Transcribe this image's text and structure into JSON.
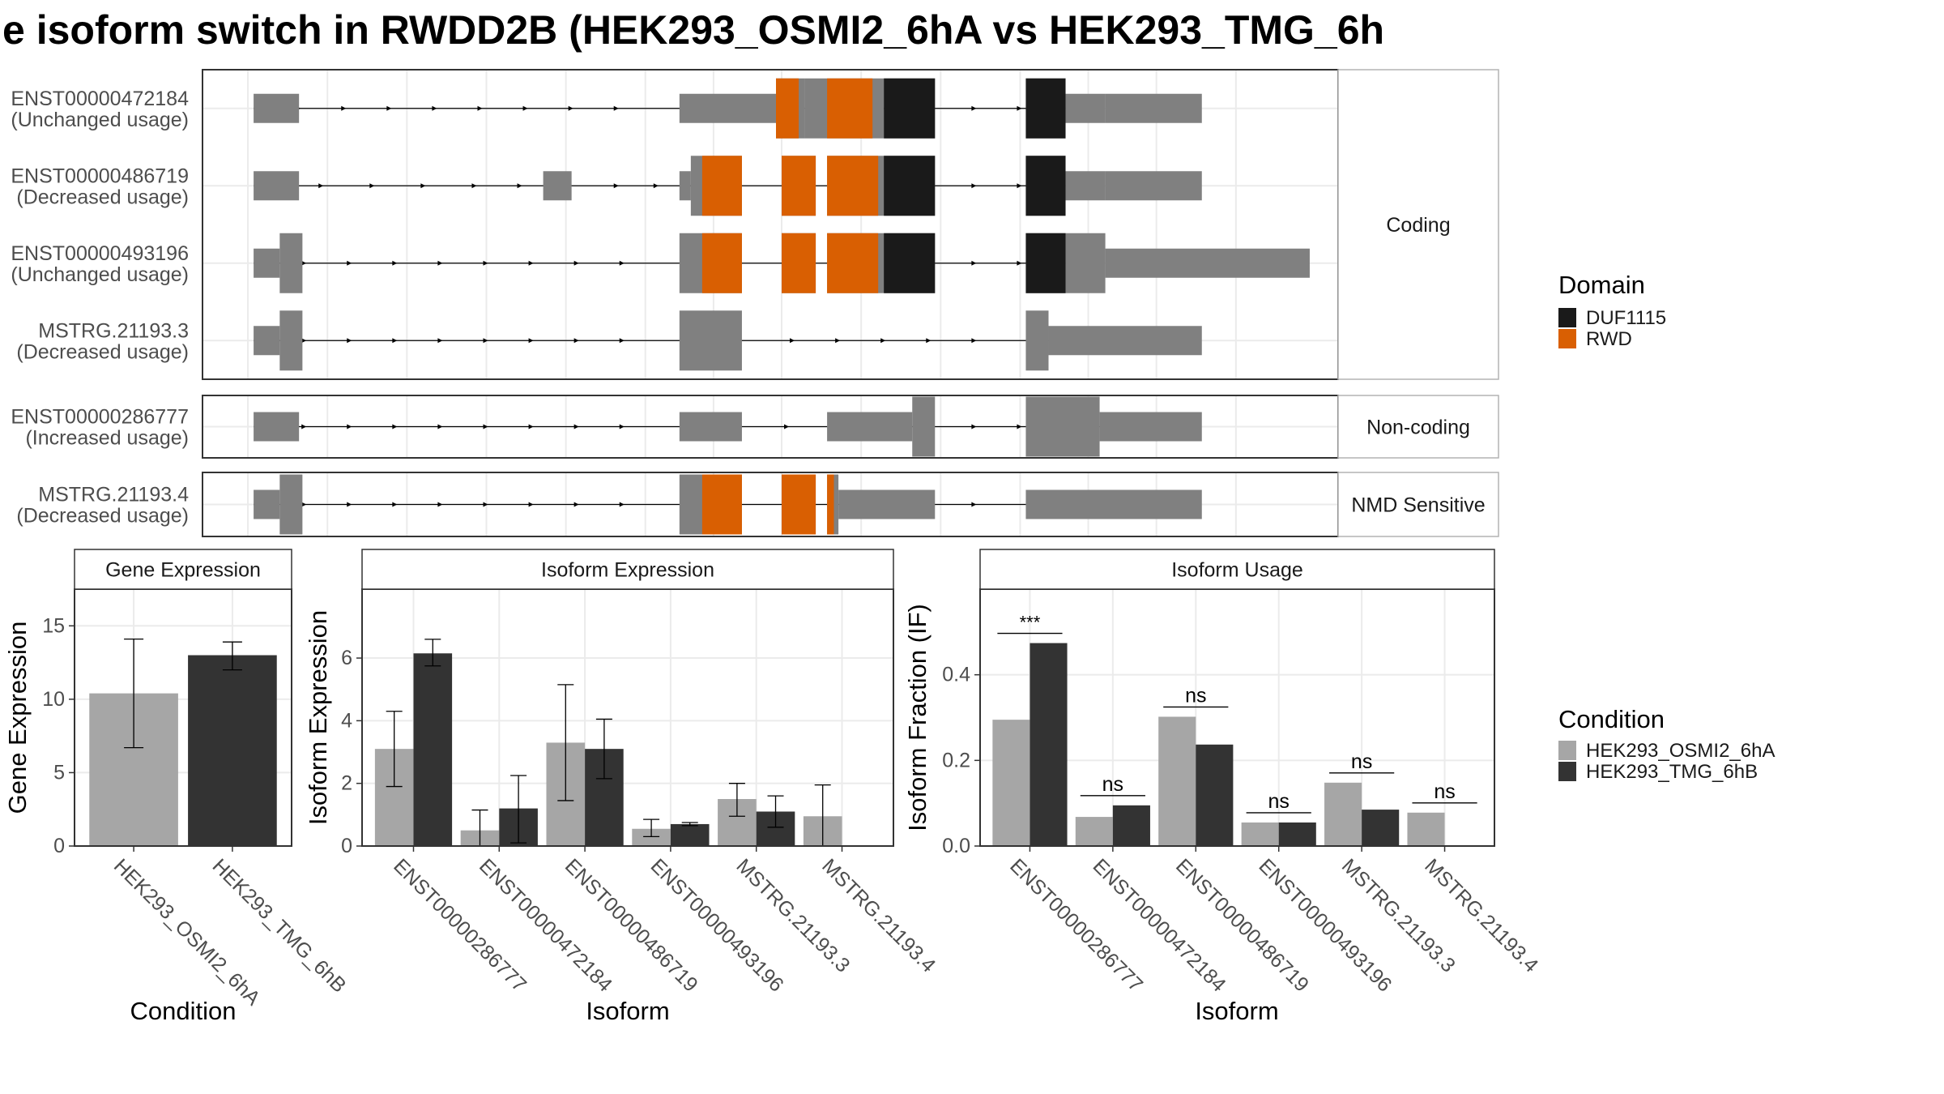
{
  "title": "e isoform switch in RWDD2B (HEK293_OSMI2_6hA vs HEK293_TMG_6h",
  "colors": {
    "exon": "#808080",
    "rwd": "#d95f02",
    "duf": "#1a1a1a",
    "cond_a": "#a6a6a6",
    "cond_b": "#333333",
    "intron": "#000000",
    "grid": "#ebebeb",
    "panel_border": "#333333",
    "strip_border": "#b3b3b3"
  },
  "structure": {
    "x_range": [
      0,
      100
    ],
    "domain_legend": {
      "title": "Domain",
      "items": [
        {
          "label": "DUF1115",
          "color": "#1a1a1a"
        },
        {
          "label": "RWD",
          "color": "#d95f02"
        }
      ]
    },
    "groups": [
      {
        "label": "Coding",
        "tracks": [
          {
            "name": "ENST00000472184",
            "usage": "(Unchanged usage)",
            "span": [
              4.5,
              79.5
            ],
            "arrows": [
              8.5,
              12.5,
              16.5,
              20.5,
              24.5,
              28.5,
              32.5,
              36.5,
              68,
              72
            ],
            "exons": [
              {
                "s": 4.5,
                "e": 8.5,
                "type": "utr"
              },
              {
                "s": 42,
                "e": 50.5,
                "type": "utr"
              },
              {
                "s": 50.5,
                "e": 53,
                "type": "cds"
              },
              {
                "s": 53,
                "e": 60,
                "type": "cds"
              },
              {
                "s": 60,
                "e": 64.5,
                "type": "cds"
              },
              {
                "s": 72.5,
                "e": 76,
                "type": "cds"
              },
              {
                "s": 76,
                "e": 79.5,
                "type": "utr"
              },
              {
                "s": 79.5,
                "e": 88,
                "type": "utr"
              }
            ],
            "domains": [
              {
                "s": 50.5,
                "e": 52.5,
                "type": "rwd"
              },
              {
                "s": 55,
                "e": 59,
                "type": "rwd"
              },
              {
                "s": 60,
                "e": 64.5,
                "type": "duf"
              },
              {
                "s": 72.5,
                "e": 76,
                "type": "duf"
              }
            ]
          },
          {
            "name": "ENST00000486719",
            "usage": "(Decreased usage)",
            "span": [
              4.5,
              79.5
            ],
            "arrows": [
              10.5,
              15,
              19.5,
              24,
              28,
              32,
              36.5,
              40,
              68,
              72
            ],
            "exons": [
              {
                "s": 4.5,
                "e": 8.5,
                "type": "utr"
              },
              {
                "s": 30,
                "e": 32.5,
                "type": "utr"
              },
              {
                "s": 42,
                "e": 43,
                "type": "utr"
              },
              {
                "s": 43,
                "e": 47.5,
                "type": "cds"
              },
              {
                "s": 51,
                "e": 54,
                "type": "cds"
              },
              {
                "s": 55,
                "e": 64.5,
                "type": "cds"
              },
              {
                "s": 72.5,
                "e": 76,
                "type": "cds"
              },
              {
                "s": 76,
                "e": 79.5,
                "type": "utr"
              },
              {
                "s": 79.5,
                "e": 88,
                "type": "utr"
              }
            ],
            "domains": [
              {
                "s": 44,
                "e": 47.5,
                "type": "rwd"
              },
              {
                "s": 51,
                "e": 54,
                "type": "rwd"
              },
              {
                "s": 55,
                "e": 59.5,
                "type": "rwd"
              },
              {
                "s": 60,
                "e": 64.5,
                "type": "duf"
              },
              {
                "s": 72.5,
                "e": 76,
                "type": "duf"
              }
            ]
          },
          {
            "name": "ENST00000493196",
            "usage": "(Unchanged usage)",
            "span": [
              4.5,
              79.5
            ],
            "arrows": [
              9,
              13,
              17,
              21,
              25,
              29,
              33,
              37,
              68,
              72
            ],
            "exons": [
              {
                "s": 4.5,
                "e": 6.8,
                "type": "utr"
              },
              {
                "s": 6.8,
                "e": 8.8,
                "type": "cds"
              },
              {
                "s": 42,
                "e": 47.5,
                "type": "cds"
              },
              {
                "s": 51,
                "e": 54,
                "type": "cds"
              },
              {
                "s": 55,
                "e": 64.5,
                "type": "cds"
              },
              {
                "s": 72.5,
                "e": 76,
                "type": "cds"
              },
              {
                "s": 76,
                "e": 79.5,
                "type": "cds"
              },
              {
                "s": 79.5,
                "e": 97.5,
                "type": "utr"
              }
            ],
            "domains": [
              {
                "s": 44,
                "e": 47.5,
                "type": "rwd"
              },
              {
                "s": 51,
                "e": 54,
                "type": "rwd"
              },
              {
                "s": 55,
                "e": 59.5,
                "type": "rwd"
              },
              {
                "s": 60,
                "e": 64.5,
                "type": "duf"
              },
              {
                "s": 72.5,
                "e": 76,
                "type": "duf"
              }
            ]
          },
          {
            "name": "MSTRG.21193.3",
            "usage": "(Decreased usage)",
            "span": [
              4.5,
              79.5
            ],
            "arrows": [
              9,
              13,
              17,
              21,
              25,
              29,
              33,
              37,
              52,
              56,
              60,
              64,
              68
            ],
            "exons": [
              {
                "s": 4.5,
                "e": 6.8,
                "type": "utr"
              },
              {
                "s": 6.8,
                "e": 8.8,
                "type": "cds"
              },
              {
                "s": 42,
                "e": 47.5,
                "type": "cds"
              },
              {
                "s": 72.5,
                "e": 74.5,
                "type": "cds"
              },
              {
                "s": 74.5,
                "e": 88,
                "type": "utr"
              }
            ],
            "domains": []
          }
        ]
      },
      {
        "label": "Non-coding",
        "tracks": [
          {
            "name": "ENST00000286777",
            "usage": "(Increased usage)",
            "span": [
              4.5,
              79.5
            ],
            "arrows": [
              9,
              13,
              17,
              21,
              25,
              29,
              33,
              37,
              51.5,
              55.5,
              68,
              72
            ],
            "exons": [
              {
                "s": 4.5,
                "e": 8.5,
                "type": "utr"
              },
              {
                "s": 42,
                "e": 47.5,
                "type": "utr"
              },
              {
                "s": 55,
                "e": 62.5,
                "type": "utr"
              },
              {
                "s": 62.5,
                "e": 64.5,
                "type": "cds"
              },
              {
                "s": 72.5,
                "e": 79,
                "type": "cds"
              },
              {
                "s": 79,
                "e": 88,
                "type": "utr"
              }
            ],
            "domains": []
          }
        ]
      },
      {
        "label": "NMD Sensitive",
        "tracks": [
          {
            "name": "MSTRG.21193.4",
            "usage": "(Decreased usage)",
            "span": [
              4.5,
              72.5
            ],
            "arrows": [
              9,
              13,
              17,
              21,
              25,
              29,
              33,
              37,
              68
            ],
            "exons": [
              {
                "s": 4.5,
                "e": 6.8,
                "type": "utr"
              },
              {
                "s": 6.8,
                "e": 8.8,
                "type": "cds"
              },
              {
                "s": 42,
                "e": 47.5,
                "type": "cds"
              },
              {
                "s": 51,
                "e": 54,
                "type": "cds"
              },
              {
                "s": 55,
                "e": 56,
                "type": "cds"
              },
              {
                "s": 56,
                "e": 64.5,
                "type": "utr"
              },
              {
                "s": 72.5,
                "e": 88,
                "type": "utr"
              }
            ],
            "domains": [
              {
                "s": 44,
                "e": 47.5,
                "type": "rwd"
              },
              {
                "s": 51,
                "e": 54,
                "type": "rwd"
              },
              {
                "s": 55,
                "e": 55.6,
                "type": "rwd"
              }
            ]
          }
        ]
      }
    ]
  },
  "chart_data": [
    {
      "type": "bar",
      "strip": "Gene Expression",
      "xlabel": "Condition",
      "ylabel": "Gene Expression",
      "ylim": [
        0,
        17.5
      ],
      "yticks": [
        0,
        5,
        10,
        15
      ],
      "categories": [
        "HEK293_OSMI2_6hA",
        "HEK293_TMG_6hB"
      ],
      "values": [
        10.4,
        13.0
      ],
      "errors": [
        [
          6.7,
          14.1
        ],
        [
          12.0,
          13.9
        ]
      ]
    },
    {
      "type": "bar",
      "strip": "Isoform Expression",
      "xlabel": "Isoform",
      "ylabel": "Isoform Expression",
      "ylim": [
        0,
        8.2
      ],
      "yticks": [
        0,
        2,
        4,
        6
      ],
      "categories": [
        "ENST00000286777",
        "ENST00000472184",
        "ENST00000486719",
        "ENST00000493196",
        "MSTRG.21193.3",
        "MSTRG.21193.4"
      ],
      "series": [
        {
          "name": "HEK293_OSMI2_6hA",
          "values": [
            3.1,
            0.5,
            3.3,
            0.55,
            1.5,
            0.95
          ],
          "errors": [
            [
              1.9,
              4.3
            ],
            [
              0.0,
              1.15
            ],
            [
              1.45,
              5.15
            ],
            [
              0.3,
              0.85
            ],
            [
              0.95,
              2.0
            ],
            [
              0.0,
              1.95
            ]
          ]
        },
        {
          "name": "HEK293_TMG_6hB",
          "values": [
            6.15,
            1.2,
            3.1,
            0.7,
            1.1,
            0.0
          ],
          "errors": [
            [
              5.75,
              6.6
            ],
            [
              0.1,
              2.25
            ],
            [
              2.15,
              4.05
            ],
            [
              0.65,
              0.75
            ],
            [
              0.6,
              1.6
            ],
            [
              0.0,
              0.0
            ]
          ]
        }
      ]
    },
    {
      "type": "bar",
      "strip": "Isoform Usage",
      "xlabel": "Isoform",
      "ylabel": "Isoform Fraction (IF)",
      "ylim": [
        0,
        0.6
      ],
      "yticks": [
        0.0,
        0.2,
        0.4
      ],
      "categories": [
        "ENST00000286777",
        "ENST00000472184",
        "ENST00000486719",
        "ENST00000493196",
        "MSTRG.21193.3",
        "MSTRG.21193.4"
      ],
      "series": [
        {
          "name": "HEK293_OSMI2_6hA",
          "values": [
            0.295,
            0.068,
            0.302,
            0.055,
            0.148,
            0.078
          ]
        },
        {
          "name": "HEK293_TMG_6hB",
          "values": [
            0.474,
            0.095,
            0.237,
            0.055,
            0.085,
            0.0
          ]
        }
      ],
      "significance": [
        "***",
        "ns",
        "ns",
        "ns",
        "ns",
        "ns"
      ]
    }
  ],
  "condition_legend": {
    "title": "Condition",
    "items": [
      {
        "label": "HEK293_OSMI2_6hA",
        "color": "#a6a6a6"
      },
      {
        "label": "HEK293_TMG_6hB",
        "color": "#333333"
      }
    ]
  }
}
